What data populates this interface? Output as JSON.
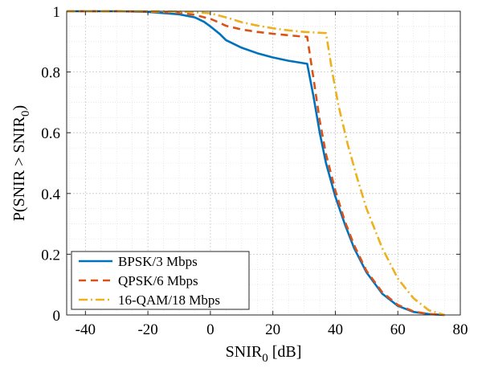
{
  "chart_data": {
    "type": "line",
    "title": "",
    "xlabel": {
      "base": "SNIR",
      "sub": "0",
      "suffix": " [dB]"
    },
    "ylabel": {
      "prefix": "P(SNIR > SNIR",
      "sub": "0",
      "suffix": ")"
    },
    "xlim": [
      -46,
      80
    ],
    "ylim": [
      0,
      1
    ],
    "xticks": [
      -40,
      -20,
      0,
      20,
      40,
      60,
      80
    ],
    "yticks": [
      0,
      0.2,
      0.4,
      0.6,
      0.8,
      1
    ],
    "ytick_labels": [
      "0",
      "0.2",
      "0.4",
      "0.6",
      "0.8",
      "1"
    ],
    "grid": true,
    "legend_position": "bottom-left",
    "series": [
      {
        "name": "BPSK/3 Mbps",
        "color": "#0072BD",
        "dash": "solid",
        "x": [
          -46,
          -30,
          -20,
          -10,
          -5,
          -2,
          0,
          3,
          5,
          10,
          15,
          20,
          25,
          28,
          31,
          33,
          35,
          37,
          40,
          43,
          46,
          50,
          55,
          60,
          65,
          70,
          75
        ],
        "y": [
          1.0,
          1.0,
          0.998,
          0.99,
          0.98,
          0.965,
          0.95,
          0.925,
          0.905,
          0.88,
          0.862,
          0.848,
          0.837,
          0.832,
          0.827,
          0.72,
          0.6,
          0.5,
          0.39,
          0.3,
          0.22,
          0.14,
          0.07,
          0.03,
          0.01,
          0.003,
          0.0
        ]
      },
      {
        "name": "QPSK/6 Mbps",
        "color": "#D95319",
        "dash": "dashed",
        "x": [
          -46,
          -30,
          -20,
          -10,
          -5,
          0,
          3,
          5,
          10,
          15,
          20,
          25,
          28,
          31,
          33,
          35,
          37,
          40,
          43,
          46,
          50,
          55,
          60,
          65,
          70,
          75
        ],
        "y": [
          1.0,
          1.0,
          0.999,
          0.995,
          0.988,
          0.975,
          0.962,
          0.952,
          0.94,
          0.932,
          0.926,
          0.921,
          0.918,
          0.916,
          0.78,
          0.64,
          0.53,
          0.41,
          0.31,
          0.23,
          0.145,
          0.075,
          0.033,
          0.012,
          0.003,
          0.0
        ]
      },
      {
        "name": "16-QAM/18 Mbps",
        "color": "#EDB120",
        "dash": "dashdot",
        "x": [
          -46,
          -30,
          -20,
          -10,
          -5,
          0,
          5,
          10,
          15,
          20,
          25,
          30,
          35,
          37,
          39,
          41,
          44,
          47,
          50,
          55,
          60,
          65,
          70,
          75
        ],
        "y": [
          1.0,
          1.0,
          1.0,
          0.999,
          0.997,
          0.993,
          0.98,
          0.964,
          0.953,
          0.944,
          0.937,
          0.932,
          0.929,
          0.928,
          0.8,
          0.69,
          0.56,
          0.45,
          0.35,
          0.22,
          0.12,
          0.055,
          0.015,
          0.0
        ]
      }
    ]
  }
}
